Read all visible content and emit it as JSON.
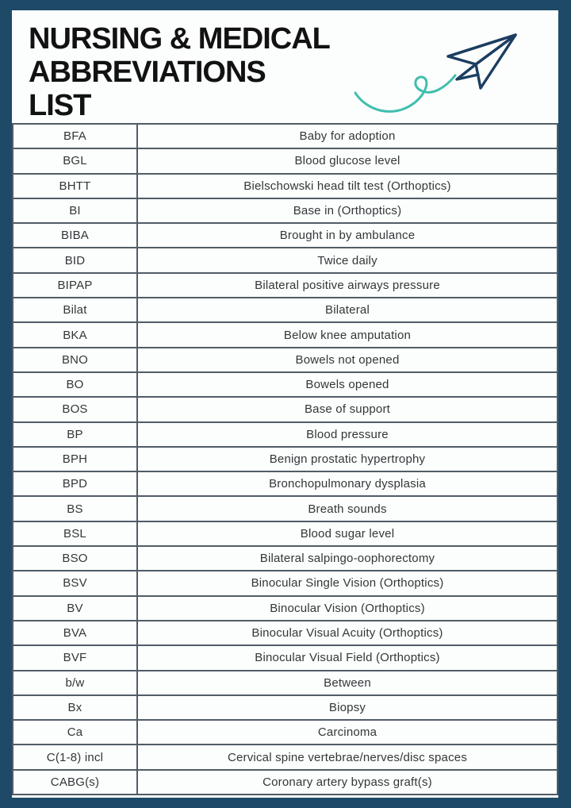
{
  "page": {
    "background_color": "#1e4a68",
    "card_color": "#fcfdfd"
  },
  "header": {
    "title": "NURSING & MEDICAL\nABBREVIATIONS\nLIST",
    "doodle": {
      "plane_icon": "paper-plane-icon",
      "plane_color": "#1b3e60",
      "swoosh_icon": "swoosh-curl-icon",
      "swoosh_color": "#3fbfad"
    }
  },
  "table": {
    "border_color": "#515c67",
    "text_color": "#333638",
    "rows": [
      [
        "BFA",
        "Baby for adoption"
      ],
      [
        "BGL",
        "Blood glucose level"
      ],
      [
        "BHTT",
        "Bielschowski head tilt test (Orthoptics)"
      ],
      [
        "BI",
        "Base in (Orthoptics)"
      ],
      [
        "BIBA",
        "Brought in by ambulance"
      ],
      [
        "BID",
        "Twice daily"
      ],
      [
        "BIPAP",
        "Bilateral positive airways pressure"
      ],
      [
        "Bilat",
        "Bilateral"
      ],
      [
        "BKA",
        "Below knee amputation"
      ],
      [
        "BNO",
        "Bowels not opened"
      ],
      [
        "BO",
        "Bowels opened"
      ],
      [
        "BOS",
        "Base of support"
      ],
      [
        "BP",
        "Blood pressure"
      ],
      [
        "BPH",
        "Benign prostatic hypertrophy"
      ],
      [
        "BPD",
        "Bronchopulmonary dysplasia"
      ],
      [
        "BS",
        "Breath sounds"
      ],
      [
        "BSL",
        "Blood sugar level"
      ],
      [
        "BSO",
        "Bilateral salpingo-oophorectomy"
      ],
      [
        "BSV",
        "Binocular Single Vision (Orthoptics)"
      ],
      [
        "BV",
        "Binocular Vision (Orthoptics)"
      ],
      [
        "BVA",
        "Binocular Visual Acuity (Orthoptics)"
      ],
      [
        "BVF",
        "Binocular Visual Field (Orthoptics)"
      ],
      [
        "b/w",
        "Between"
      ],
      [
        "Bx",
        "Biopsy"
      ],
      [
        "Ca",
        "Carcinoma"
      ],
      [
        "C(1-8) incl",
        "Cervical spine vertebrae/nerves/disc spaces"
      ],
      [
        "CABG(s)",
        "Coronary artery bypass graft(s)"
      ]
    ]
  }
}
